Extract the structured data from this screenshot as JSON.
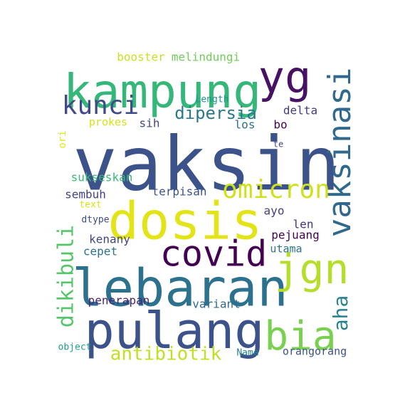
{
  "words": [
    {
      "text": "vaksin",
      "color": "#3b528b"
    },
    {
      "text": "dosis",
      "color": "#e2e418"
    },
    {
      "text": "lebaran",
      "color": "#2c728e"
    },
    {
      "text": "pulang",
      "color": "#3b528b"
    },
    {
      "text": "kampung",
      "color": "#35b779"
    },
    {
      "text": "yg",
      "color": "#471164"
    },
    {
      "text": "vaksinasi",
      "color": "#31688e"
    },
    {
      "text": "covid",
      "color": "#440154"
    },
    {
      "text": "jgn",
      "color": "#b5de2b"
    },
    {
      "text": "bia",
      "color": "#7ad151"
    },
    {
      "text": "omicron",
      "color": "#d0e11c"
    },
    {
      "text": "kunci",
      "color": "#3e4a89"
    },
    {
      "text": "dikibuli",
      "color": "#54c568"
    },
    {
      "text": "antibiotik",
      "color": "#c0df25"
    },
    {
      "text": "aha",
      "color": "#26828e"
    },
    {
      "text": "dipersia",
      "color": "#2a788e"
    },
    {
      "text": "booster",
      "color": "#c8e020"
    },
    {
      "text": "melindungi",
      "color": "#6ece58"
    },
    {
      "text": "Length",
      "color": "#218f8d"
    },
    {
      "text": "delta",
      "color": "#443983"
    },
    {
      "text": "prokes",
      "color": "#d8e219"
    },
    {
      "text": "sih",
      "color": "#3f4889"
    },
    {
      "text": "los",
      "color": "#2d708e"
    },
    {
      "text": "bo",
      "color": "#440154"
    },
    {
      "text": "ori",
      "color": "#e5e419"
    },
    {
      "text": "te",
      "color": "#3e4989"
    },
    {
      "text": "sukseskan",
      "color": "#38b977"
    },
    {
      "text": "sembuh",
      "color": "#414487"
    },
    {
      "text": "terpisah",
      "color": "#3b528b"
    },
    {
      "text": "text",
      "color": "#d8e219"
    },
    {
      "text": "ayo",
      "color": "#433e85"
    },
    {
      "text": "len",
      "color": "#46337e"
    },
    {
      "text": "dtype",
      "color": "#3e4a89"
    },
    {
      "text": "kenany",
      "color": "#3f4788"
    },
    {
      "text": "pejuang",
      "color": "#440154"
    },
    {
      "text": "cepet",
      "color": "#2c728e"
    },
    {
      "text": "utama",
      "color": "#2a768e"
    },
    {
      "text": "penerapan",
      "color": "#482475"
    },
    {
      "text": "variant",
      "color": "#2f6b8e"
    },
    {
      "text": "object",
      "color": "#1f9e89"
    },
    {
      "text": "Name",
      "color": "#26828e"
    },
    {
      "text": "orangorang",
      "color": "#3b528b"
    }
  ]
}
